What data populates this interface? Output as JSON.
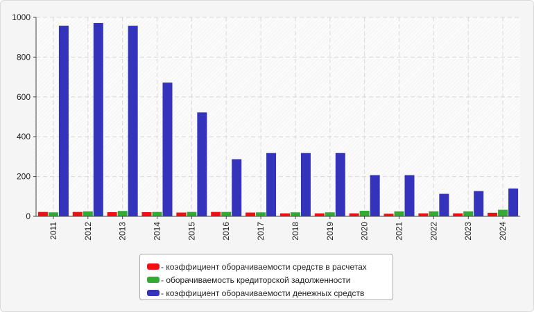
{
  "chart_data": {
    "type": "bar",
    "categories": [
      "2011",
      "2012",
      "2013",
      "2014",
      "2015",
      "2016",
      "2017",
      "2018",
      "2019",
      "2020",
      "2021",
      "2022",
      "2023",
      "2024"
    ],
    "series": [
      {
        "name": "- коэффициент оборачиваемости средств в расчетах",
        "color": "#ee1111",
        "values": [
          22,
          22,
          21,
          21,
          19,
          22,
          19,
          15,
          15,
          15,
          13,
          15,
          15,
          18
        ]
      },
      {
        "name": "- оборачиваемость кредиторской задолженности",
        "color": "#33aa33",
        "values": [
          20,
          25,
          27,
          22,
          22,
          22,
          20,
          20,
          20,
          28,
          25,
          25,
          25,
          33
        ]
      },
      {
        "name": "- коэффициент оборачиваемости денежных средств",
        "color": "#3333bb",
        "values": [
          958,
          972,
          958,
          672,
          522,
          287,
          318,
          318,
          318,
          207,
          207,
          113,
          127,
          140
        ]
      }
    ],
    "ylim": [
      0,
      1000
    ],
    "yticks": [
      0,
      200,
      400,
      600,
      800,
      1000
    ],
    "grid": true,
    "legend": "bottom-center"
  }
}
